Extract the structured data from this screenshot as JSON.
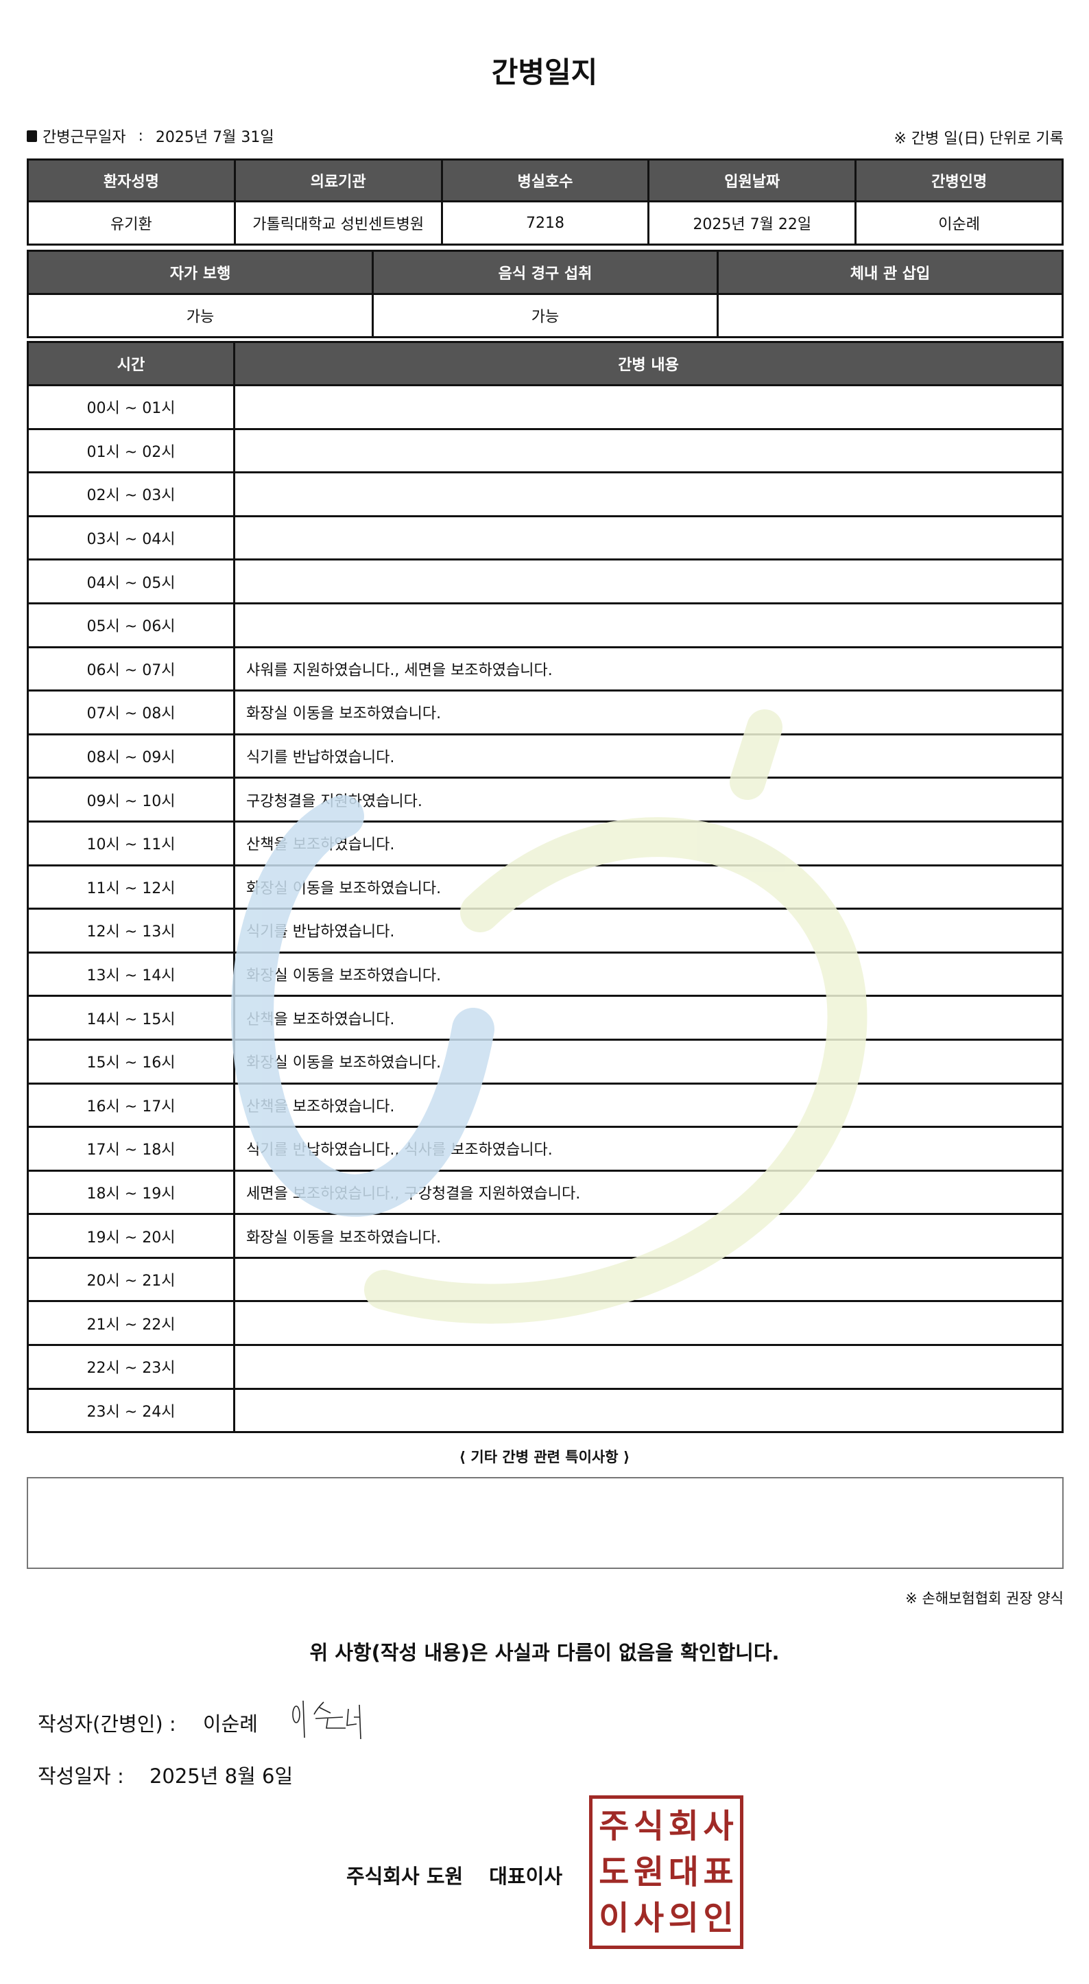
{
  "title": "간병일지",
  "duty_label": "간병근무일자",
  "duty_sep": ":",
  "duty_date": "2025년 7월 31일",
  "unit_note": "※ 간병 일(日) 단위로 기록",
  "patient_table": {
    "headers": [
      "환자성명",
      "의료기관",
      "병실호수",
      "입원날짜",
      "간병인명"
    ],
    "values": [
      "유기환",
      "가톨릭대학교 성빈센트병원",
      "7218",
      "2025년 7월 22일",
      "이순례"
    ]
  },
  "status_table": {
    "headers": [
      "자가 보행",
      "음식 경구 섭취",
      "체내 관 삽입"
    ],
    "values": [
      "가능",
      "가능",
      ""
    ]
  },
  "log_table": {
    "headers": [
      "시간",
      "간병 내용"
    ],
    "rows": [
      {
        "time": "00시 ~ 01시",
        "content": ""
      },
      {
        "time": "01시 ~ 02시",
        "content": ""
      },
      {
        "time": "02시 ~ 03시",
        "content": ""
      },
      {
        "time": "03시 ~ 04시",
        "content": ""
      },
      {
        "time": "04시 ~ 05시",
        "content": ""
      },
      {
        "time": "05시 ~ 06시",
        "content": ""
      },
      {
        "time": "06시 ~ 07시",
        "content": "샤워를 지원하였습니다., 세면을 보조하였습니다."
      },
      {
        "time": "07시 ~ 08시",
        "content": "화장실 이동을 보조하였습니다."
      },
      {
        "time": "08시 ~ 09시",
        "content": "식기를 반납하였습니다."
      },
      {
        "time": "09시 ~ 10시",
        "content": "구강청결을 지원하였습니다."
      },
      {
        "time": "10시 ~ 11시",
        "content": "산책을 보조하였습니다."
      },
      {
        "time": "11시 ~ 12시",
        "content": "화장실 이동을 보조하였습니다."
      },
      {
        "time": "12시 ~ 13시",
        "content": "식기를 반납하였습니다."
      },
      {
        "time": "13시 ~ 14시",
        "content": "화장실 이동을 보조하였습니다."
      },
      {
        "time": "14시 ~ 15시",
        "content": "산책을 보조하였습니다."
      },
      {
        "time": "15시 ~ 16시",
        "content": "화장실 이동을 보조하였습니다."
      },
      {
        "time": "16시 ~ 17시",
        "content": "산책을 보조하였습니다."
      },
      {
        "time": "17시 ~ 18시",
        "content": "식기를 반납하였습니다., 식사를 보조하였습니다."
      },
      {
        "time": "18시 ~ 19시",
        "content": "세면을 보조하였습니다., 구강청결을 지원하였습니다."
      },
      {
        "time": "19시 ~ 20시",
        "content": "화장실 이동을 보조하였습니다."
      },
      {
        "time": "20시 ~ 21시",
        "content": ""
      },
      {
        "time": "21시 ~ 22시",
        "content": ""
      },
      {
        "time": "22시 ~ 23시",
        "content": ""
      },
      {
        "time": "23시 ~ 24시",
        "content": ""
      }
    ]
  },
  "special_title": "⟨ 기타 간병 관련 특이사항 ⟩",
  "special_content": "",
  "form_note": "※ 손해보험협회 권장 양식",
  "confirm": "위 사항(작성 내용)은 사실과 다름이 없음을 확인합니다.",
  "writer_label": "작성자(간병인) :",
  "writer_name": "이순례",
  "signature": "이순례",
  "date_label": "작성일자 :",
  "date_value": "2025년 8월 6일",
  "company": "주식회사 도원",
  "ceo": "대표이사",
  "stamp_chars": [
    "주",
    "식",
    "회",
    "사",
    "도",
    "원",
    "대",
    "표",
    "이",
    "사",
    "의",
    "인"
  ],
  "colors": {
    "header_bg": "#555555",
    "stamp": "#a02a26",
    "watermark_blue": "#c9dff0",
    "watermark_green": "#eef3d6"
  }
}
